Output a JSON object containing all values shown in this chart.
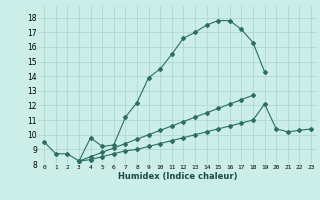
{
  "xlabel": "Humidex (Indice chaleur)",
  "bg_color": "#cceee8",
  "grid_color": "#aad4ce",
  "line_color": "#2a6e65",
  "xlim": [
    -0.5,
    23.5
  ],
  "ylim": [
    8.0,
    18.8
  ],
  "xticks": [
    0,
    1,
    2,
    3,
    4,
    5,
    6,
    7,
    8,
    9,
    10,
    11,
    12,
    13,
    14,
    15,
    16,
    17,
    18,
    19,
    20,
    21,
    22,
    23
  ],
  "yticks": [
    8,
    9,
    10,
    11,
    12,
    13,
    14,
    15,
    16,
    17,
    18
  ],
  "line1_x": [
    0,
    1,
    2,
    3,
    4,
    5,
    6,
    7,
    8,
    9,
    10,
    11,
    12,
    13,
    14,
    15,
    16,
    17,
    18,
    19
  ],
  "line1_y": [
    9.5,
    8.7,
    8.7,
    8.2,
    9.8,
    9.2,
    9.3,
    11.2,
    12.2,
    13.9,
    14.5,
    15.5,
    16.6,
    17.0,
    17.5,
    17.8,
    17.8,
    17.2,
    16.3,
    14.3
  ],
  "line2_x": [
    3,
    4,
    5,
    6,
    7,
    8,
    9,
    10,
    11,
    12,
    13,
    14,
    15,
    16,
    17,
    18,
    19,
    20,
    21,
    22,
    23
  ],
  "line2_y": [
    8.2,
    8.3,
    8.5,
    8.7,
    8.9,
    9.0,
    9.2,
    9.4,
    9.6,
    9.8,
    10.0,
    10.2,
    10.4,
    10.6,
    10.8,
    11.0,
    12.1,
    10.4,
    10.2,
    10.3,
    10.4
  ],
  "line3_x": [
    3,
    4,
    5,
    6,
    7,
    8,
    9,
    10,
    11,
    12,
    13,
    14,
    15,
    16,
    17,
    18
  ],
  "line3_y": [
    8.2,
    8.5,
    8.8,
    9.1,
    9.4,
    9.7,
    10.0,
    10.3,
    10.6,
    10.9,
    11.2,
    11.5,
    11.8,
    12.1,
    12.4,
    12.7
  ]
}
